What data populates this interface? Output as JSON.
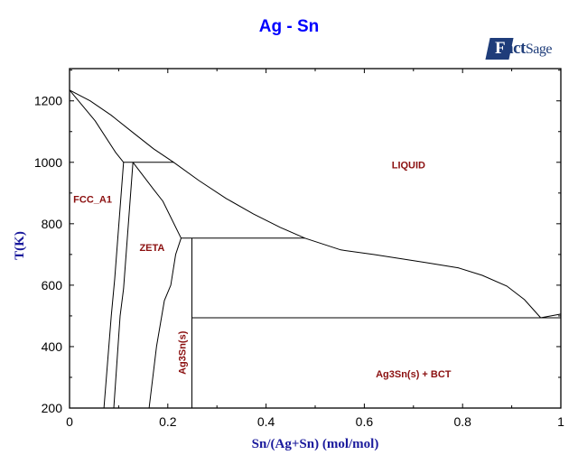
{
  "chart_data": {
    "type": "line",
    "title": "Ag - Sn",
    "xlabel": "Sn/(Ag+Sn) (mol/mol)",
    "ylabel": "T(K)",
    "xlim": [
      0,
      1
    ],
    "ylim": [
      200,
      1305
    ],
    "xticks": [
      0,
      0.2,
      0.4,
      0.6,
      0.8,
      1
    ],
    "xtick_labels": [
      "0",
      "0.2",
      "0.4",
      "0.6",
      "0.8",
      "1"
    ],
    "yticks": [
      200,
      400,
      600,
      800,
      1000,
      1200
    ],
    "ytick_labels": [
      "200",
      "400",
      "600",
      "800",
      "1000",
      "1200"
    ],
    "grid": false,
    "line_color": "#000000",
    "label_color": "#8b1010",
    "title_color": "#0000ff",
    "axis_label_color": "#1a1a9c",
    "series": [
      {
        "id": "liquidus",
        "x": [
          0,
          0.042,
          0.085,
          0.129,
          0.171,
          0.212,
          0.263,
          0.319,
          0.374,
          0.429,
          0.479,
          0.552,
          0.619,
          0.724,
          0.792,
          0.84,
          0.89,
          0.926,
          0.959
        ],
        "y": [
          1235,
          1200,
          1153,
          1097,
          1044,
          1000,
          941,
          882,
          832,
          788,
          753,
          715,
          700,
          674,
          656,
          632,
          597,
          553,
          494
        ]
      },
      {
        "id": "liquidus-sn",
        "x": [
          0.959,
          1.0
        ],
        "y": [
          494,
          506
        ]
      },
      {
        "id": "fcc-solidus",
        "x": [
          0,
          0.052,
          0.094,
          0.11
        ],
        "y": [
          1235,
          1135,
          1032,
          1000
        ]
      },
      {
        "id": "fcc-solvus",
        "x": [
          0.11,
          0.092,
          0.085,
          0.075,
          0.07
        ],
        "y": [
          1000,
          620,
          500,
          300,
          200
        ]
      },
      {
        "id": "zeta-left",
        "x": [
          0.129,
          0.11,
          0.103,
          0.09
        ],
        "y": [
          1000,
          588,
          500,
          200
        ]
      },
      {
        "id": "zeta-upper-right",
        "x": [
          0.129,
          0.171,
          0.19,
          0.227
        ],
        "y": [
          1000,
          912,
          873,
          753
        ]
      },
      {
        "id": "zeta-lower-right",
        "x": [
          0.227,
          0.216,
          0.206,
          0.193,
          0.177,
          0.162
        ],
        "y": [
          753,
          700,
          600,
          550,
          400,
          200
        ]
      },
      {
        "id": "peritectic-1000",
        "x": [
          0.11,
          0.212
        ],
        "y": [
          1000,
          1000
        ]
      },
      {
        "id": "peritectic-753",
        "x": [
          0.227,
          0.479
        ],
        "y": [
          753,
          753
        ]
      },
      {
        "id": "eutectic-494",
        "x": [
          0.249,
          1.0
        ],
        "y": [
          494,
          494
        ]
      },
      {
        "id": "ag3sn-line",
        "x": [
          0.249,
          0.249
        ],
        "y": [
          200,
          753
        ]
      }
    ],
    "annotations": [
      {
        "text": "LIQUID",
        "x": 0.69,
        "y": 980
      },
      {
        "text": "FCC_A1",
        "x": 0.047,
        "y": 868
      },
      {
        "text": "ZETA",
        "x": 0.168,
        "y": 712
      },
      {
        "text": "Ag3Sn(s)",
        "x": 0.236,
        "y": 380,
        "rotate": true
      },
      {
        "text": "Ag3Sn(s) + BCT",
        "x": 0.7,
        "y": 300
      }
    ]
  },
  "logo": {
    "text": "FactSage"
  }
}
